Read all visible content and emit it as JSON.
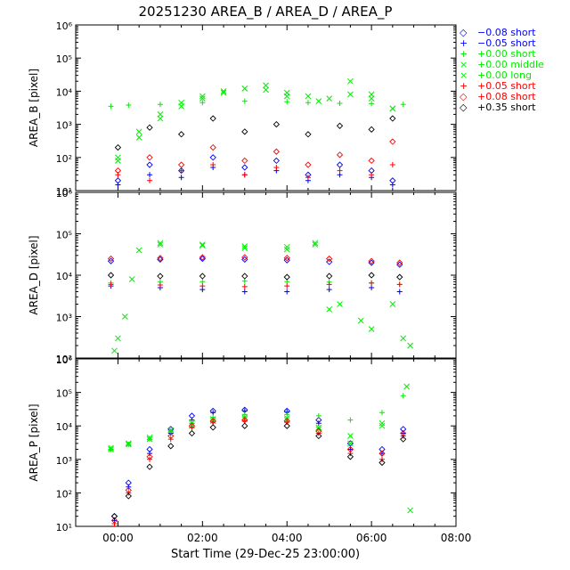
{
  "title": "20251230 AREA_B / AREA_D / AREA_P",
  "xlabel": "Start Time (29-Dec-25 23:00:00)",
  "x_tick_labels": [
    "00:00",
    "02:00",
    "04:00",
    "06:00",
    "08:00"
  ],
  "y_tick_labels": [
    "10^1",
    "10^2",
    "10^3",
    "10^4",
    "10^5",
    "10^6"
  ],
  "legend": [
    {
      "symbol": "◇",
      "label": "−0.08 short",
      "color": "#0000ff"
    },
    {
      "symbol": "+",
      "label": "−0.05 short",
      "color": "#0000ff"
    },
    {
      "symbol": "+",
      "label": "+0.00 short",
      "color": "#00ee00"
    },
    {
      "symbol": "×",
      "label": "+0.00 middle",
      "color": "#00ee00"
    },
    {
      "symbol": "×",
      "label": "+0.00 long",
      "color": "#00ee00"
    },
    {
      "symbol": "+",
      "label": "+0.05 short",
      "color": "#ff0000"
    },
    {
      "symbol": "◇",
      "label": "+0.08 short",
      "color": "#ff0000"
    },
    {
      "symbol": "◇",
      "label": "+0.35 short",
      "color": "#000000"
    }
  ],
  "chart_data": [
    {
      "type": "scatter",
      "title": "20251230 AREA_B / AREA_D / AREA_P",
      "ylabel": "AREA_B [pixel]",
      "xlabel": "",
      "xlim": [
        "23:00",
        "08:00"
      ],
      "ylim": [
        10,
        1000000
      ],
      "yscale": "log",
      "series": [
        {
          "name": "−0.08 short",
          "color": "#0000ff",
          "marker": "diamond",
          "x": [
            "00:00",
            "00:45",
            "01:30",
            "02:15",
            "03:00",
            "03:45",
            "04:30",
            "05:15",
            "06:00",
            "06:30"
          ],
          "y": [
            20,
            60,
            40,
            100,
            50,
            80,
            30,
            60,
            40,
            20
          ]
        },
        {
          "name": "−0.05 short",
          "color": "#0000ff",
          "marker": "plus",
          "x": [
            "00:00",
            "00:45",
            "01:30",
            "02:15",
            "03:00",
            "03:45",
            "04:30",
            "05:15",
            "06:00",
            "06:30"
          ],
          "y": [
            15,
            30,
            25,
            50,
            30,
            40,
            20,
            30,
            25,
            15
          ]
        },
        {
          "name": "+0.00 short",
          "color": "#00ee00",
          "marker": "plus",
          "x": [
            "23:50",
            "00:15",
            "01:00",
            "02:00",
            "03:00",
            "04:00",
            "04:30",
            "05:15",
            "06:00",
            "06:45"
          ],
          "y": [
            3500,
            3800,
            4000,
            4500,
            5000,
            4800,
            4500,
            4300,
            4200,
            4000
          ]
        },
        {
          "name": "+0.00 middle",
          "color": "#00ee00",
          "marker": "x",
          "x": [
            "00:00",
            "00:30",
            "01:00",
            "01:30",
            "02:00",
            "02:30",
            "03:00",
            "03:30",
            "04:00",
            "04:30",
            "05:00",
            "05:30",
            "06:00",
            "06:30"
          ],
          "y": [
            80,
            400,
            1500,
            3500,
            6000,
            9000,
            12000,
            15000,
            9000,
            7000,
            6000,
            8000,
            6000,
            3000
          ]
        },
        {
          "name": "+0.00 long",
          "color": "#00ee00",
          "marker": "x",
          "x": [
            "00:00",
            "00:30",
            "01:00",
            "01:30",
            "02:00",
            "02:30",
            "03:00",
            "03:30",
            "04:00",
            "04:45",
            "05:30",
            "06:00",
            "06:30"
          ],
          "y": [
            100,
            600,
            2000,
            4500,
            7000,
            10000,
            12000,
            11000,
            7000,
            5000,
            20000,
            8000,
            3000
          ]
        },
        {
          "name": "+0.05 short",
          "color": "#ff0000",
          "marker": "plus",
          "x": [
            "00:00",
            "00:45",
            "01:30",
            "02:15",
            "03:00",
            "03:45",
            "04:30",
            "05:15",
            "06:00",
            "06:30"
          ],
          "y": [
            30,
            20,
            40,
            60,
            30,
            50,
            25,
            40,
            30,
            60
          ]
        },
        {
          "name": "+0.08 short",
          "color": "#ff0000",
          "marker": "diamond",
          "x": [
            "00:00",
            "00:45",
            "01:30",
            "02:15",
            "03:00",
            "03:45",
            "04:30",
            "05:15",
            "06:00",
            "06:30"
          ],
          "y": [
            40,
            100,
            60,
            200,
            80,
            150,
            60,
            120,
            80,
            300
          ]
        },
        {
          "name": "+0.35 short",
          "color": "#000000",
          "marker": "diamond",
          "x": [
            "00:00",
            "00:45",
            "01:30",
            "02:15",
            "03:00",
            "03:45",
            "04:30",
            "05:15",
            "06:00",
            "06:30"
          ],
          "y": [
            200,
            800,
            500,
            1500,
            600,
            1000,
            500,
            900,
            700,
            1500
          ]
        }
      ]
    },
    {
      "type": "scatter",
      "ylabel": "AREA_D [pixel]",
      "xlabel": "",
      "xlim": [
        "23:00",
        "08:00"
      ],
      "ylim": [
        100,
        1000000
      ],
      "yscale": "log",
      "series": [
        {
          "name": "−0.08 short",
          "color": "#0000ff",
          "marker": "diamond",
          "x": [
            "23:50",
            "01:00",
            "02:00",
            "03:00",
            "04:00",
            "05:00",
            "06:00",
            "06:40"
          ],
          "y": [
            22000,
            24000,
            25000,
            24000,
            23000,
            21000,
            20000,
            18000
          ]
        },
        {
          "name": "−0.05 short",
          "color": "#0000ff",
          "marker": "plus",
          "x": [
            "23:50",
            "01:00",
            "02:00",
            "03:00",
            "04:00",
            "05:00",
            "06:00",
            "06:40"
          ],
          "y": [
            5500,
            5000,
            4500,
            4000,
            4000,
            4500,
            5000,
            4000
          ]
        },
        {
          "name": "+0.00 short",
          "color": "#00ee00",
          "marker": "plus",
          "x": [
            "23:50",
            "01:00",
            "02:00",
            "03:00",
            "04:00",
            "05:00",
            "06:00",
            "06:40"
          ],
          "y": [
            6500,
            7000,
            7000,
            7200,
            7000,
            6800,
            6500,
            6000
          ]
        },
        {
          "name": "+0.00 middle",
          "color": "#00ee00",
          "marker": "x",
          "x": [
            "23:55",
            "00:10",
            "00:30",
            "01:00",
            "02:00",
            "03:00",
            "04:00",
            "04:40",
            "05:00",
            "05:45",
            "06:30",
            "06:55"
          ],
          "y": [
            150,
            1000,
            40000,
            55000,
            52000,
            45000,
            42000,
            55000,
            1500,
            800,
            2000,
            200
          ]
        },
        {
          "name": "+0.00 long",
          "color": "#00ee00",
          "marker": "x",
          "x": [
            "00:00",
            "00:20",
            "01:00",
            "02:00",
            "03:00",
            "04:00",
            "04:40",
            "05:15",
            "06:00",
            "06:45"
          ],
          "y": [
            300,
            8000,
            60000,
            55000,
            50000,
            48000,
            60000,
            2000,
            500,
            300
          ]
        },
        {
          "name": "+0.05 short",
          "color": "#ff0000",
          "marker": "plus",
          "x": [
            "23:50",
            "01:00",
            "02:00",
            "03:00",
            "04:00",
            "05:00",
            "06:00",
            "06:40"
          ],
          "y": [
            6000,
            5800,
            5500,
            5300,
            5500,
            6000,
            6500,
            6000
          ]
        },
        {
          "name": "+0.08 short",
          "color": "#ff0000",
          "marker": "diamond",
          "x": [
            "23:50",
            "01:00",
            "02:00",
            "03:00",
            "04:00",
            "05:00",
            "06:00",
            "06:40"
          ],
          "y": [
            25000,
            26000,
            27000,
            27000,
            26000,
            25000,
            22000,
            20000
          ]
        },
        {
          "name": "+0.35 short",
          "color": "#000000",
          "marker": "diamond",
          "x": [
            "23:50",
            "01:00",
            "02:00",
            "03:00",
            "04:00",
            "05:00",
            "06:00",
            "06:40"
          ],
          "y": [
            10000,
            9500,
            9500,
            9500,
            9000,
            9500,
            10000,
            9000
          ]
        }
      ]
    },
    {
      "type": "scatter",
      "ylabel": "AREA_P [pixel]",
      "xlabel": "Start Time (29-Dec-25 23:00:00)",
      "xlim": [
        "23:00",
        "08:00"
      ],
      "ylim": [
        10,
        1000000
      ],
      "yscale": "log",
      "series": [
        {
          "name": "−0.08 short",
          "color": "#0000ff",
          "marker": "diamond",
          "x": [
            "23:55",
            "00:15",
            "00:45",
            "01:15",
            "01:45",
            "02:15",
            "03:00",
            "04:00",
            "04:45",
            "05:30",
            "06:15",
            "06:45"
          ],
          "y": [
            20,
            200,
            2000,
            8000,
            20000,
            28000,
            30000,
            28000,
            15000,
            3000,
            2000,
            8000
          ]
        },
        {
          "name": "−0.05 short",
          "color": "#0000ff",
          "marker": "plus",
          "x": [
            "23:55",
            "00:15",
            "00:45",
            "01:15",
            "01:45",
            "02:15",
            "03:00",
            "04:00",
            "04:45",
            "05:30",
            "06:15",
            "06:45"
          ],
          "y": [
            15,
            150,
            1500,
            6000,
            15000,
            25000,
            28000,
            26000,
            12000,
            2000,
            1500,
            6000
          ]
        },
        {
          "name": "+0.00 short",
          "color": "#00ee00",
          "marker": "plus",
          "x": [
            "23:50",
            "00:15",
            "00:45",
            "01:15",
            "01:45",
            "02:15",
            "03:00",
            "04:00",
            "04:45",
            "05:30",
            "06:15",
            "06:45"
          ],
          "y": [
            2000,
            2800,
            4000,
            7000,
            12000,
            18000,
            22000,
            22000,
            20000,
            15000,
            25000,
            80000
          ]
        },
        {
          "name": "+0.00 middle",
          "color": "#00ee00",
          "marker": "x",
          "x": [
            "23:50",
            "00:15",
            "00:45",
            "01:15",
            "01:45",
            "02:15",
            "03:00",
            "04:00",
            "04:45",
            "05:30",
            "06:15",
            "06:55"
          ],
          "y": [
            2000,
            2800,
            4000,
            6000,
            10000,
            14000,
            16000,
            15000,
            8000,
            3000,
            10000,
            30
          ]
        },
        {
          "name": "+0.00 long",
          "color": "#00ee00",
          "marker": "x",
          "x": [
            "23:50",
            "00:15",
            "00:45",
            "01:15",
            "01:45",
            "02:15",
            "03:00",
            "04:00",
            "04:45",
            "05:30",
            "06:15",
            "06:50"
          ],
          "y": [
            2200,
            3000,
            4500,
            7500,
            12000,
            16000,
            18000,
            17000,
            9000,
            5000,
            12000,
            150000
          ]
        },
        {
          "name": "+0.05 short",
          "color": "#ff0000",
          "marker": "plus",
          "x": [
            "23:55",
            "00:15",
            "00:45",
            "01:15",
            "01:45",
            "02:15",
            "03:00",
            "04:00",
            "04:45",
            "05:30",
            "06:15",
            "06:45"
          ],
          "y": [
            12,
            100,
            1000,
            4000,
            9000,
            13000,
            14000,
            13000,
            6000,
            1500,
            1000,
            5000
          ]
        },
        {
          "name": "+0.08 short",
          "color": "#ff0000",
          "marker": "diamond",
          "x": [
            "23:55",
            "00:15",
            "00:45",
            "01:15",
            "01:45",
            "02:15",
            "03:00",
            "04:00",
            "04:45",
            "05:30",
            "06:15",
            "06:45"
          ],
          "y": [
            15,
            120,
            1200,
            5000,
            10000,
            14000,
            15000,
            14000,
            7000,
            2000,
            1500,
            6000
          ]
        },
        {
          "name": "+0.35 short",
          "color": "#000000",
          "marker": "diamond",
          "x": [
            "23:55",
            "00:15",
            "00:45",
            "01:15",
            "01:45",
            "02:15",
            "03:00",
            "04:00",
            "04:45",
            "05:30",
            "06:15",
            "06:45"
          ],
          "y": [
            20,
            80,
            600,
            2500,
            6000,
            9000,
            10000,
            10000,
            5000,
            1200,
            800,
            4000
          ]
        }
      ]
    }
  ]
}
